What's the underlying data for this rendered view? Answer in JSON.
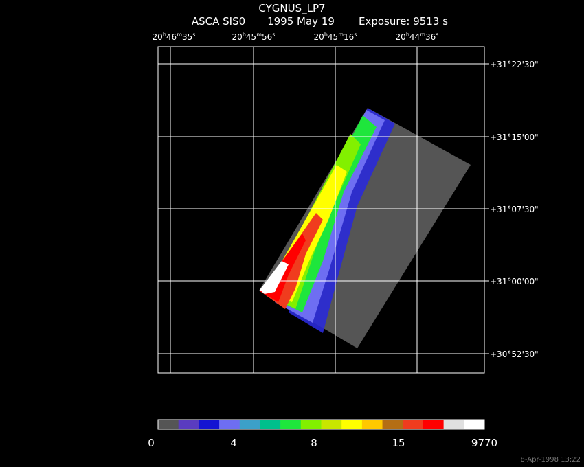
{
  "title": "CYGNUS_LP7",
  "subtitle": [
    "ASCA SIS0",
    "1995 May 19",
    "Exposure:  9513 s"
  ],
  "ra_labels": [
    [
      "20",
      "h",
      "46",
      "m",
      "35",
      "s"
    ],
    [
      "20",
      "h",
      "45",
      "m",
      "56",
      "s"
    ],
    [
      "20",
      "h",
      "45",
      "m",
      "16",
      "s"
    ],
    [
      "20",
      "h",
      "44",
      "m",
      "36",
      "s"
    ]
  ],
  "dec_labels": [
    "+31°22'30\"",
    "+31°15'00\"",
    "+31°07'30\"",
    "+31°00'00\"",
    "+30°52'30\""
  ],
  "colorbar": {
    "colors": [
      "#555555",
      "#5a3cc0",
      "#1414d2",
      "#6e6ef2",
      "#3ca0c8",
      "#00c08c",
      "#1ee63c",
      "#82f000",
      "#c8e600",
      "#ffff00",
      "#ffc800",
      "#b46e14",
      "#f03c1e",
      "#ff0000",
      "#e0e0e0",
      "#ffffff"
    ],
    "tick_labels": [
      "0",
      "4",
      "8",
      "15",
      "9770"
    ]
  },
  "timestamp": "8-Apr-1998 13:22"
}
